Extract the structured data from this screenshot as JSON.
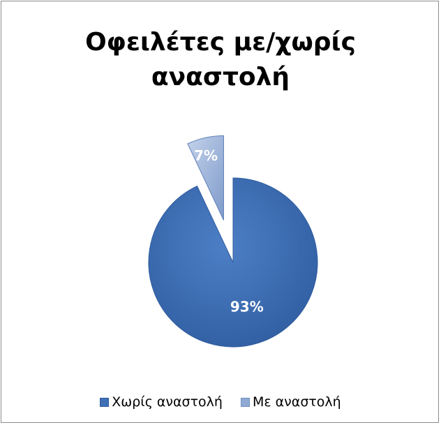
{
  "chart_data": {
    "type": "pie",
    "title_lines": [
      "Οφειλέτες με/χωρίς",
      "αναστολή"
    ],
    "categories": [
      "Χωρίς αναστολή",
      "Με αναστολή"
    ],
    "values": [
      93,
      7
    ],
    "labels": [
      "93%",
      "7%"
    ],
    "colors": [
      "#3f6fb5",
      "#8fa9d4"
    ],
    "exploded": [
      false,
      true
    ],
    "legend_position": "bottom"
  }
}
